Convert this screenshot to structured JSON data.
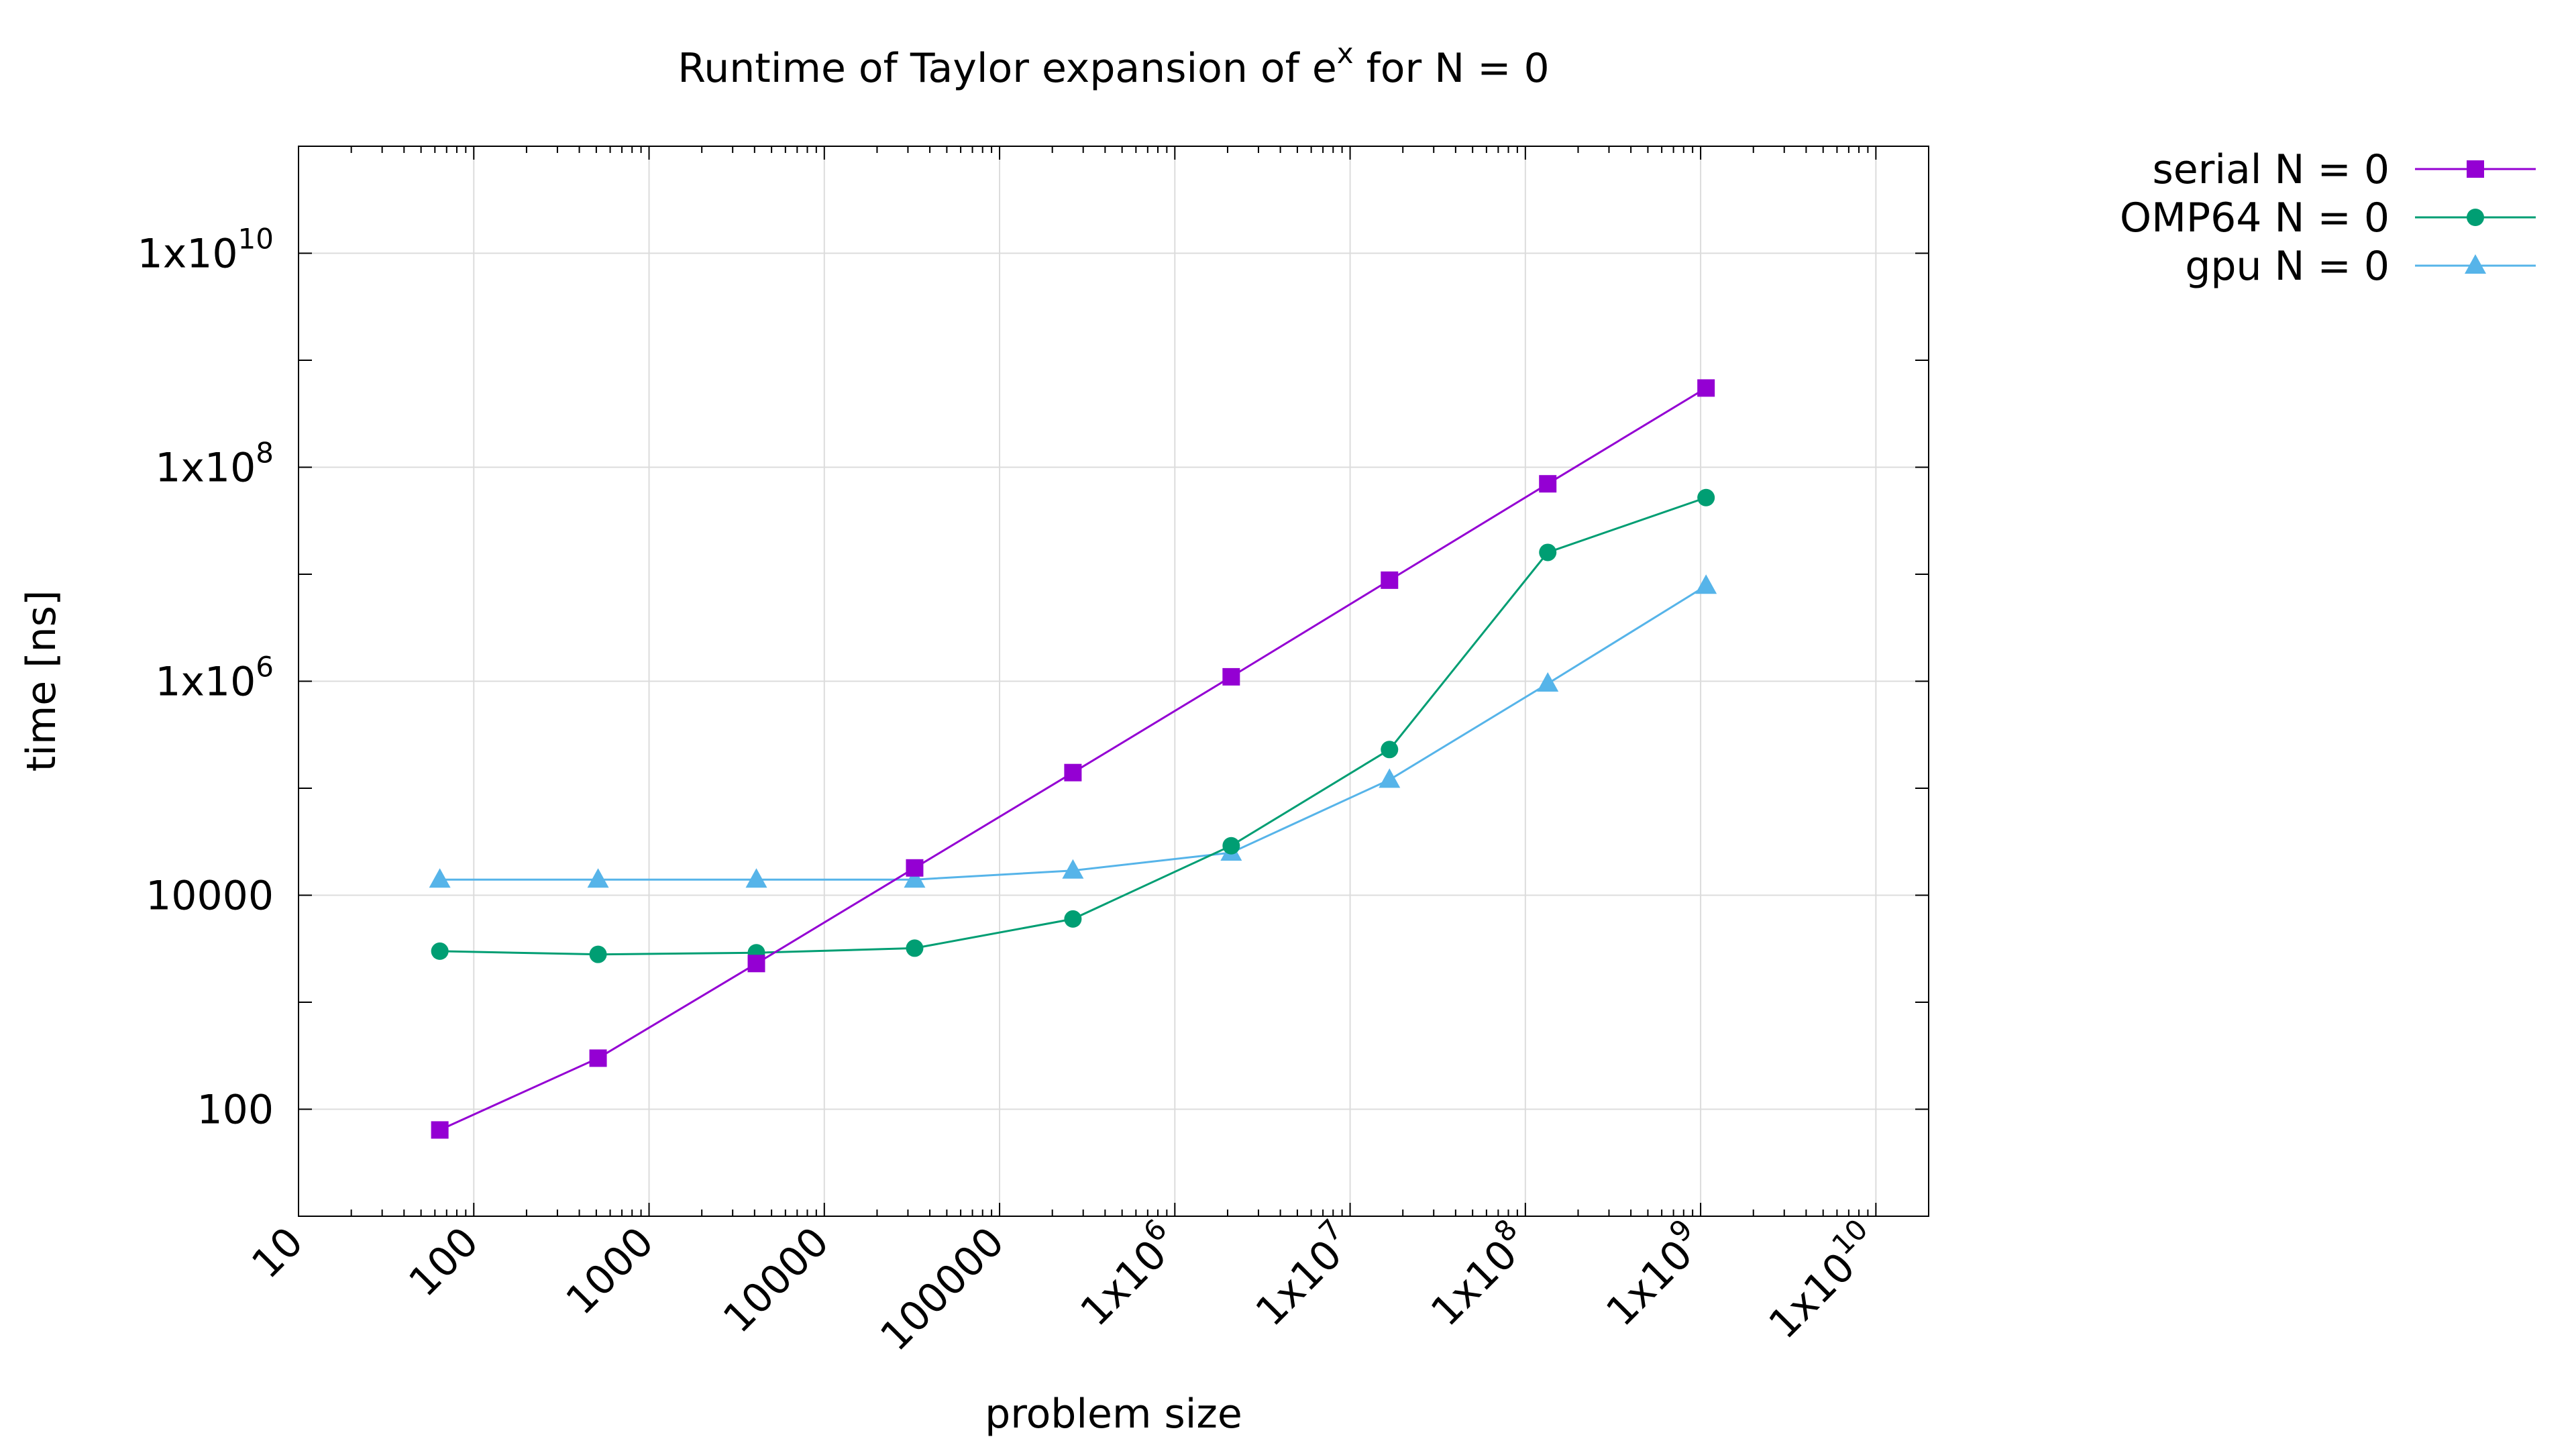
{
  "chart_data": {
    "type": "line",
    "title": "Runtime of Taylor expansion of e",
    "title_sup": "x",
    "title_suffix": " for N = 0",
    "xlabel": "problem size",
    "ylabel": "time [ns]",
    "x_scale": "log",
    "y_scale": "log",
    "xlim": [
      10,
      20000000000
    ],
    "ylim": [
      10,
      100000000000
    ],
    "grid": true,
    "legend_position": "outside-top-right",
    "x_ticks": [
      {
        "base": "10",
        "sup": ""
      },
      {
        "base": "100",
        "sup": ""
      },
      {
        "base": "1000",
        "sup": ""
      },
      {
        "base": "10000",
        "sup": ""
      },
      {
        "base": "100000",
        "sup": ""
      },
      {
        "base": "1x10",
        "sup": "6"
      },
      {
        "base": "1x10",
        "sup": "7"
      },
      {
        "base": "1x10",
        "sup": "8"
      },
      {
        "base": "1x10",
        "sup": "9"
      },
      {
        "base": "1x10",
        "sup": "10"
      }
    ],
    "y_ticks": [
      {
        "base": "100",
        "sup": ""
      },
      {
        "base": "10000",
        "sup": ""
      },
      {
        "base": "1x10",
        "sup": "6"
      },
      {
        "base": "1x10",
        "sup": "8"
      },
      {
        "base": "1x10",
        "sup": "10"
      }
    ],
    "x": [
      64,
      512,
      4096,
      32768,
      262144,
      2097152,
      16777216,
      134217728,
      1073741824
    ],
    "series": [
      {
        "name": "serial N = 0",
        "color": "#9400D3",
        "marker": "square",
        "values": [
          64,
          300,
          2300,
          18000,
          140000,
          1100000,
          8800000,
          70000000,
          550000000
        ]
      },
      {
        "name": "OMP64 N = 0",
        "color": "#009E73",
        "marker": "circle",
        "values": [
          3000,
          2800,
          2900,
          3200,
          6000,
          29000,
          230000,
          16000000,
          52000000
        ]
      },
      {
        "name": "gpu N = 0",
        "color": "#56B4E9",
        "marker": "triangle",
        "values": [
          14000,
          14000,
          14000,
          14000,
          17000,
          25000,
          120000,
          950000,
          7800000
        ]
      }
    ]
  }
}
